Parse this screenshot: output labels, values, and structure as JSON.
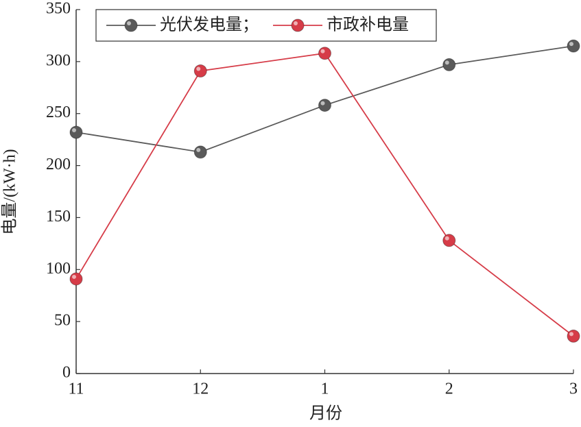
{
  "chart_data": {
    "type": "line",
    "x_label": "月份",
    "y_label": "电量/(kW·h)",
    "categories": [
      "11",
      "12",
      "1",
      "2",
      "3"
    ],
    "series": [
      {
        "name": "光伏发电量；",
        "color": "#5a5a5a",
        "values": [
          232,
          213,
          258,
          297,
          315
        ]
      },
      {
        "name": "市政补电量",
        "color": "#d63c48",
        "values": [
          91,
          291,
          308,
          128,
          36
        ]
      }
    ],
    "ylim": [
      0,
      350
    ],
    "yticks": [
      0,
      50,
      100,
      150,
      200,
      250,
      300,
      350
    ],
    "legend": "top-left",
    "grid": false
  }
}
